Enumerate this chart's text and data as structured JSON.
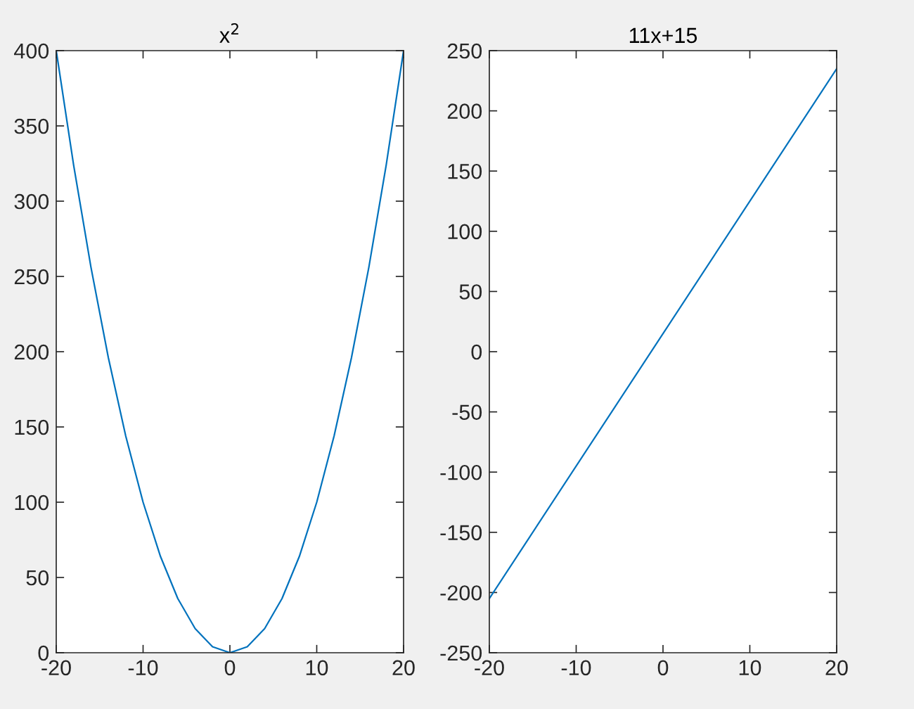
{
  "chart_data": [
    {
      "type": "line",
      "title": "x$^{2}$",
      "x": [
        -20,
        -18,
        -16,
        -14,
        -12,
        -10,
        -8,
        -6,
        -4,
        -2,
        0,
        2,
        4,
        6,
        8,
        10,
        12,
        14,
        16,
        18,
        20
      ],
      "series": [
        {
          "color": "#0072bd",
          "values": [
            400,
            324,
            256,
            196,
            144,
            100,
            64,
            36,
            16,
            4,
            0,
            4,
            16,
            36,
            64,
            100,
            144,
            196,
            256,
            324,
            400
          ]
        }
      ],
      "xlim": [
        -20,
        20
      ],
      "ylim": [
        0,
        400
      ],
      "xticks": [
        -20,
        -10,
        0,
        10,
        20
      ],
      "yticks": [
        0,
        50,
        100,
        150,
        200,
        250,
        300,
        350,
        400
      ]
    },
    {
      "type": "line",
      "title": "11x+15",
      "x": [
        -20,
        20
      ],
      "series": [
        {
          "color": "#0072bd",
          "values": [
            -205,
            235
          ]
        }
      ],
      "xlim": [
        -20,
        20
      ],
      "ylim": [
        -250,
        250
      ],
      "xticks": [
        -20,
        -10,
        0,
        10,
        20
      ],
      "yticks": [
        -250,
        -200,
        -150,
        -100,
        -50,
        0,
        50,
        100,
        150,
        200,
        250
      ]
    }
  ]
}
